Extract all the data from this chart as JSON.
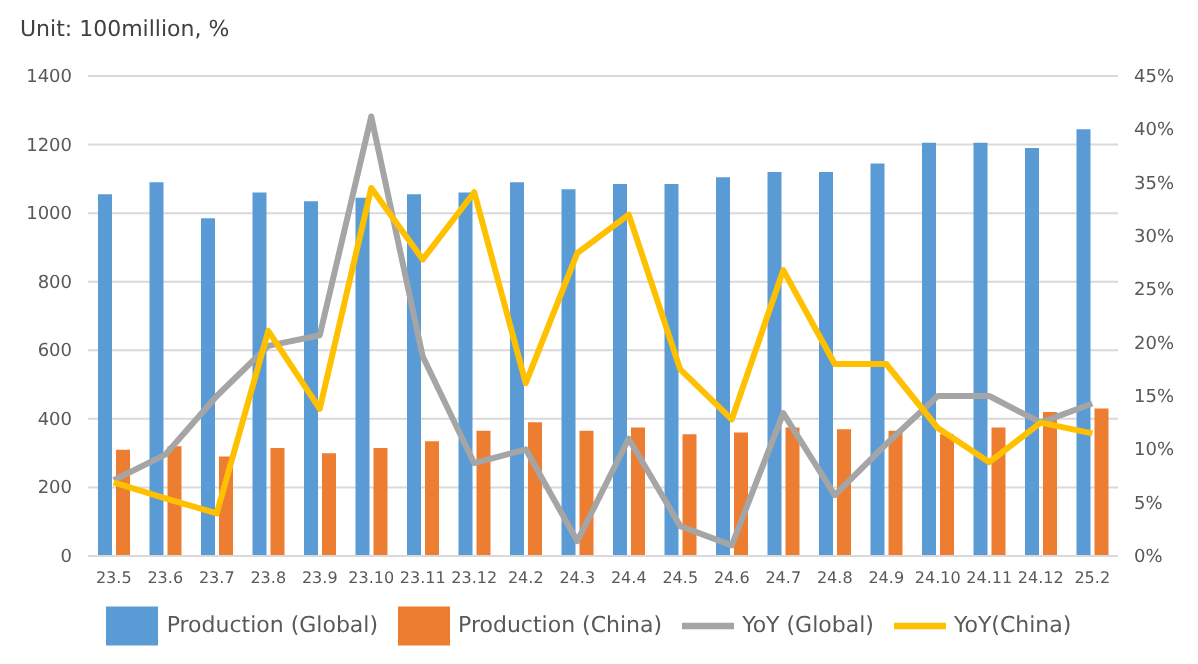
{
  "chart_data": {
    "type": "bar",
    "title": "Unit: 100million, %",
    "categories": [
      "23.5",
      "23.6",
      "23.7",
      "23.8",
      "23.9",
      "23.10",
      "23.11",
      "23.12",
      "24.2",
      "24.3",
      "24.4",
      "24.5",
      "24.6",
      "24.7",
      "24.8",
      "24.9",
      "24.10",
      "24.11",
      "24.12",
      "25.2"
    ],
    "series": [
      {
        "name": "Production (Global)",
        "color": "#5b9bd5",
        "values": [
          1055,
          1090,
          985,
          1060,
          1035,
          1045,
          1055,
          1060,
          1090,
          1070,
          1085,
          1085,
          1105,
          1120,
          1120,
          1145,
          1205,
          1205,
          1190,
          1245
        ]
      },
      {
        "name": "Production (China)",
        "color": "#ed7d31",
        "values": [
          310,
          320,
          290,
          315,
          300,
          315,
          335,
          365,
          390,
          365,
          375,
          355,
          360,
          375,
          370,
          365,
          355,
          375,
          420,
          430
        ]
      },
      {
        "name": "YoY (Global)",
        "type": "line",
        "axis": "y2",
        "color": "#a5a5a5",
        "values": [
          7.1,
          9.5,
          15,
          19.7,
          20.7,
          41.2,
          18.7,
          8.7,
          10,
          1.4,
          11,
          2.8,
          1,
          13.4,
          5.7,
          10.5,
          15,
          15,
          12.5,
          14.3
        ]
      },
      {
        "name": "YoY(China)",
        "type": "line",
        "axis": "y2",
        "color": "#ffc000",
        "values": [
          6.9,
          5.4,
          4,
          21.1,
          13.8,
          34.5,
          27.8,
          34.1,
          16.2,
          28.4,
          32,
          17.5,
          12.8,
          26.8,
          18,
          18,
          12,
          8.8,
          12.5,
          11.5
        ]
      }
    ],
    "ylim": [
      0,
      1400
    ],
    "yticks": [
      0,
      200,
      400,
      600,
      800,
      1000,
      1200,
      1400
    ],
    "y2lim": [
      0,
      45
    ],
    "y2ticks": [
      {
        "value": 0,
        "label": "0%"
      },
      {
        "value": 5,
        "label": "5%"
      },
      {
        "value": 10,
        "label": "10%"
      },
      {
        "value": 15,
        "label": "15%"
      },
      {
        "value": 20,
        "label": "20%"
      },
      {
        "value": 25,
        "label": "25%"
      },
      {
        "value": 30,
        "label": "30%"
      },
      {
        "value": 35,
        "label": "35%"
      },
      {
        "value": 40,
        "label": "40%"
      },
      {
        "value": 45,
        "label": "45%"
      }
    ],
    "grid": "y",
    "legend": "bottom",
    "marker": "none",
    "line_style": "solid"
  }
}
